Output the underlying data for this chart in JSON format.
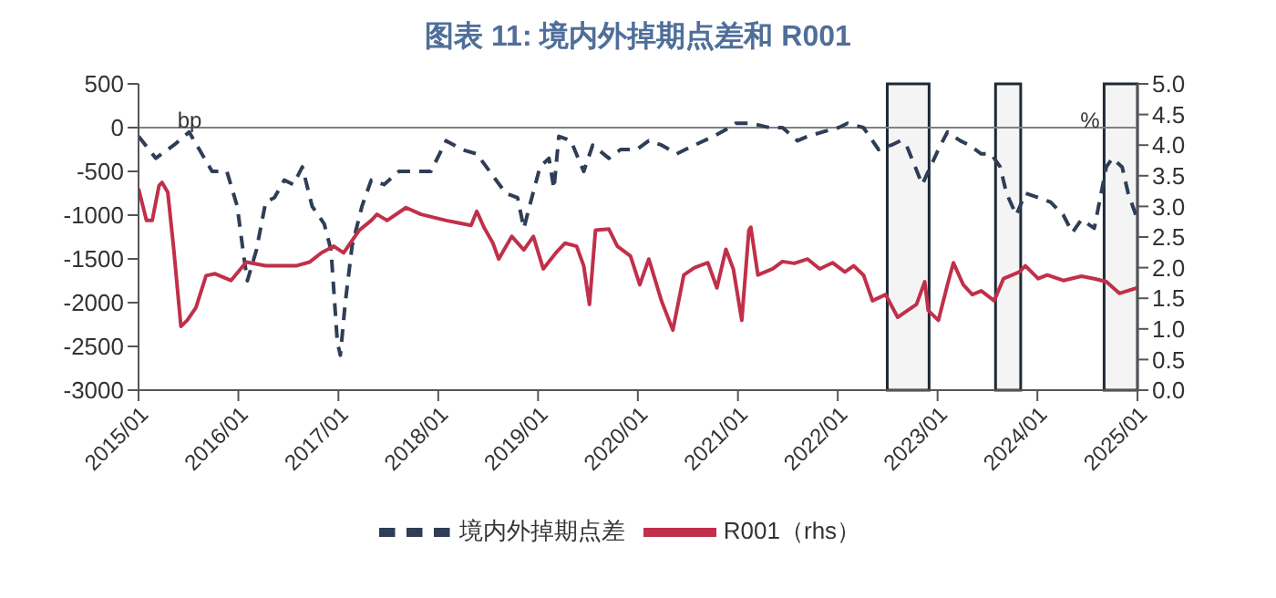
{
  "chart_data": {
    "type": "line",
    "title": "图表 11: 境内外掉期点差和 R001",
    "ylabel": "bp",
    "y2label": "%",
    "xlim": [
      "2015-01",
      "2025-01"
    ],
    "xticks": [
      {
        "value": "2015-01",
        "label": "2015/01"
      },
      {
        "value": "2016-01",
        "label": "2016/01"
      },
      {
        "value": "2017-01",
        "label": "2017/01"
      },
      {
        "value": "2018-01",
        "label": "2018/01"
      },
      {
        "value": "2019-01",
        "label": "2019/01"
      },
      {
        "value": "2020-01",
        "label": "2020/01"
      },
      {
        "value": "2021-01",
        "label": "2021/01"
      },
      {
        "value": "2022-01",
        "label": "2022/01"
      },
      {
        "value": "2023-01",
        "label": "2023/01"
      },
      {
        "value": "2024-01",
        "label": "2024/01"
      },
      {
        "value": "2025-01",
        "label": "2025/01"
      }
    ],
    "ylim": [
      -3000,
      500
    ],
    "yticks": [
      -3000,
      -2500,
      -2000,
      -1500,
      -1000,
      -500,
      0,
      500
    ],
    "y2lim": [
      0,
      5
    ],
    "y2ticks": [
      {
        "value": 0,
        "label": "0.0"
      },
      {
        "value": 0.5,
        "label": "0.5"
      },
      {
        "value": 1,
        "label": "1.0"
      },
      {
        "value": 1.5,
        "label": "1.5"
      },
      {
        "value": 2,
        "label": "2.0"
      },
      {
        "value": 2.5,
        "label": "2.5"
      },
      {
        "value": 3,
        "label": "3.0"
      },
      {
        "value": 3.5,
        "label": "3.5"
      },
      {
        "value": 4,
        "label": "4.0"
      },
      {
        "value": 4.5,
        "label": "4.5"
      },
      {
        "value": 5,
        "label": "5.0"
      }
    ],
    "grid": false,
    "legend": "bottom",
    "marker": "none",
    "ref_lines": [
      {
        "axis": "y",
        "value": 0,
        "color": "#808080"
      }
    ],
    "bands": [
      {
        "axis": "x",
        "from": "2022-07",
        "to": "2022-12",
        "color": "#1f2a36"
      },
      {
        "axis": "x",
        "from": "2023-08",
        "to": "2023-11",
        "color": "#1f2a36"
      },
      {
        "axis": "x",
        "from": "2024-09",
        "to": "2025-01",
        "color": "#1f2a36"
      }
    ],
    "series": [
      {
        "name": "境内外掉期点差",
        "color": "#2f3e56",
        "line_style": "dashed",
        "x": [
          "2015-01-01",
          "2015-03-05",
          "2015-05-10",
          "2015-07-05",
          "2015-09-27",
          "2015-11-20",
          "2015-12-28",
          "2016-01-20",
          "2016-02-03",
          "2016-03-07",
          "2016-04-10",
          "2016-05-12",
          "2016-06-17",
          "2016-07-20",
          "2016-08-22",
          "2016-09-27",
          "2016-11-10",
          "2016-12-05",
          "2016-12-28",
          "2017-01-08",
          "2017-01-26",
          "2017-02-20",
          "2017-03-28",
          "2017-05-01",
          "2017-06-17",
          "2017-08-10",
          "2017-10-08",
          "2017-12-05",
          "2018-01-30",
          "2018-03-28",
          "2018-05-22",
          "2018-07-08",
          "2018-09-05",
          "2018-10-18",
          "2018-11-10",
          "2018-12-05",
          "2019-01-08",
          "2019-02-10",
          "2019-02-28",
          "2019-03-18",
          "2019-05-01",
          "2019-06-17",
          "2019-07-20",
          "2019-09-17",
          "2019-10-30",
          "2019-12-28",
          "2020-02-10",
          "2020-03-28",
          "2020-05-22",
          "2020-07-26",
          "2020-10-04",
          "2020-12-01",
          "2020-12-24",
          "2021-02-17",
          "2021-04-27",
          "2021-06-13",
          "2021-08-07",
          "2021-09-13",
          "2021-11-06",
          "2022-01-04",
          "2022-02-06",
          "2022-04-05",
          "2022-05-08",
          "2022-05-30",
          "2022-07-16",
          "2022-08-18",
          "2022-09-09",
          "2022-10-05",
          "2022-11-06",
          "2022-11-28",
          "2023-01-04",
          "2023-02-06",
          "2023-03-25",
          "2023-04-27",
          "2023-06-10",
          "2023-07-16",
          "2023-08-18",
          "2023-09-10",
          "2023-10-16",
          "2023-11-18",
          "2024-01-04",
          "2024-02-18",
          "2024-04-05",
          "2024-05-08",
          "2024-06-10",
          "2024-07-27",
          "2024-08-18",
          "2024-09-09",
          "2024-10-01",
          "2024-11-06",
          "2024-11-28",
          "2025-01-01"
        ],
        "values": [
          -100,
          -350,
          -200,
          -50,
          -500,
          -500,
          -900,
          -1450,
          -1750,
          -1400,
          -850,
          -800,
          -600,
          -650,
          -450,
          -900,
          -1100,
          -1400,
          -2450,
          -2600,
          -2000,
          -1350,
          -900,
          -600,
          -650,
          -500,
          -500,
          -500,
          -150,
          -250,
          -300,
          -500,
          -750,
          -800,
          -1150,
          -850,
          -450,
          -350,
          -700,
          -100,
          -150,
          -500,
          -200,
          -350,
          -250,
          -250,
          -150,
          -200,
          -300,
          -200,
          -100,
          0,
          50,
          50,
          0,
          0,
          -150,
          -100,
          -50,
          0,
          50,
          0,
          -150,
          -250,
          -200,
          -150,
          -200,
          -400,
          -650,
          -500,
          -250,
          -50,
          -150,
          -200,
          -300,
          -300,
          -450,
          -750,
          -1000,
          -750,
          -800,
          -850,
          -1000,
          -1200,
          -1050,
          -1150,
          -800,
          -450,
          -350,
          -450,
          -750,
          -1050
        ]
      },
      {
        "name": "R001（rhs）",
        "color": "#c0304a",
        "axis": "y2",
        "line_style": "solid",
        "x": [
          "2015-01-01",
          "2015-01-30",
          "2015-02-20",
          "2015-03-17",
          "2015-03-28",
          "2015-04-18",
          "2015-05-10",
          "2015-06-05",
          "2015-06-28",
          "2015-07-30",
          "2015-09-05",
          "2015-10-08",
          "2015-12-05",
          "2016-01-30",
          "2016-04-10",
          "2016-07-30",
          "2016-09-17",
          "2016-10-30",
          "2016-12-15",
          "2017-01-20",
          "2017-03-18",
          "2017-05-01",
          "2017-05-22",
          "2017-06-28",
          "2017-09-05",
          "2017-10-30",
          "2018-01-30",
          "2018-05-01",
          "2018-05-22",
          "2018-06-17",
          "2018-07-20",
          "2018-08-10",
          "2018-09-27",
          "2018-11-10",
          "2018-12-15",
          "2019-01-20",
          "2019-03-07",
          "2019-04-10",
          "2019-05-22",
          "2019-06-17",
          "2019-07-08",
          "2019-07-30",
          "2019-09-17",
          "2019-10-18",
          "2019-12-05",
          "2020-01-08",
          "2020-02-10",
          "2020-03-28",
          "2020-05-08",
          "2020-06-17",
          "2020-07-26",
          "2020-09-13",
          "2020-10-16",
          "2020-11-18",
          "2020-12-15",
          "2021-01-15",
          "2021-02-10",
          "2021-02-17",
          "2021-03-15",
          "2021-05-08",
          "2021-06-13",
          "2021-07-26",
          "2021-09-13",
          "2021-10-27",
          "2021-12-13",
          "2022-01-27",
          "2022-02-28",
          "2022-04-05",
          "2022-05-08",
          "2022-06-25",
          "2022-08-08",
          "2022-09-13",
          "2022-10-16",
          "2022-11-15",
          "2022-11-28",
          "2023-01-04",
          "2023-02-06",
          "2023-02-28",
          "2023-04-05",
          "2023-05-08",
          "2023-06-10",
          "2023-07-27",
          "2023-08-30",
          "2023-10-27",
          "2023-11-18",
          "2024-01-04",
          "2024-02-06",
          "2024-04-05",
          "2024-06-10",
          "2024-07-27",
          "2024-09-09",
          "2024-10-27",
          "2025-01-01"
        ],
        "values": [
          3.29,
          2.77,
          2.77,
          3.34,
          3.39,
          3.23,
          2.29,
          1.04,
          1.14,
          1.35,
          1.87,
          1.9,
          1.79,
          2.09,
          2.03,
          2.03,
          2.09,
          2.24,
          2.35,
          2.24,
          2.61,
          2.77,
          2.87,
          2.77,
          2.98,
          2.87,
          2.77,
          2.69,
          2.92,
          2.66,
          2.4,
          2.14,
          2.51,
          2.29,
          2.51,
          1.98,
          2.24,
          2.4,
          2.35,
          2.03,
          1.4,
          2.61,
          2.63,
          2.35,
          2.19,
          1.72,
          2.14,
          1.45,
          0.98,
          1.88,
          2.0,
          2.08,
          1.67,
          2.3,
          1.98,
          1.14,
          2.61,
          2.66,
          1.88,
          1.98,
          2.1,
          2.07,
          2.14,
          1.98,
          2.08,
          1.93,
          2.03,
          1.88,
          1.46,
          1.56,
          1.19,
          1.3,
          1.4,
          1.77,
          1.3,
          1.14,
          1.72,
          2.08,
          1.72,
          1.56,
          1.62,
          1.46,
          1.82,
          1.93,
          2.03,
          1.82,
          1.88,
          1.79,
          1.86,
          1.82,
          1.77,
          1.58,
          1.67
        ]
      }
    ]
  }
}
